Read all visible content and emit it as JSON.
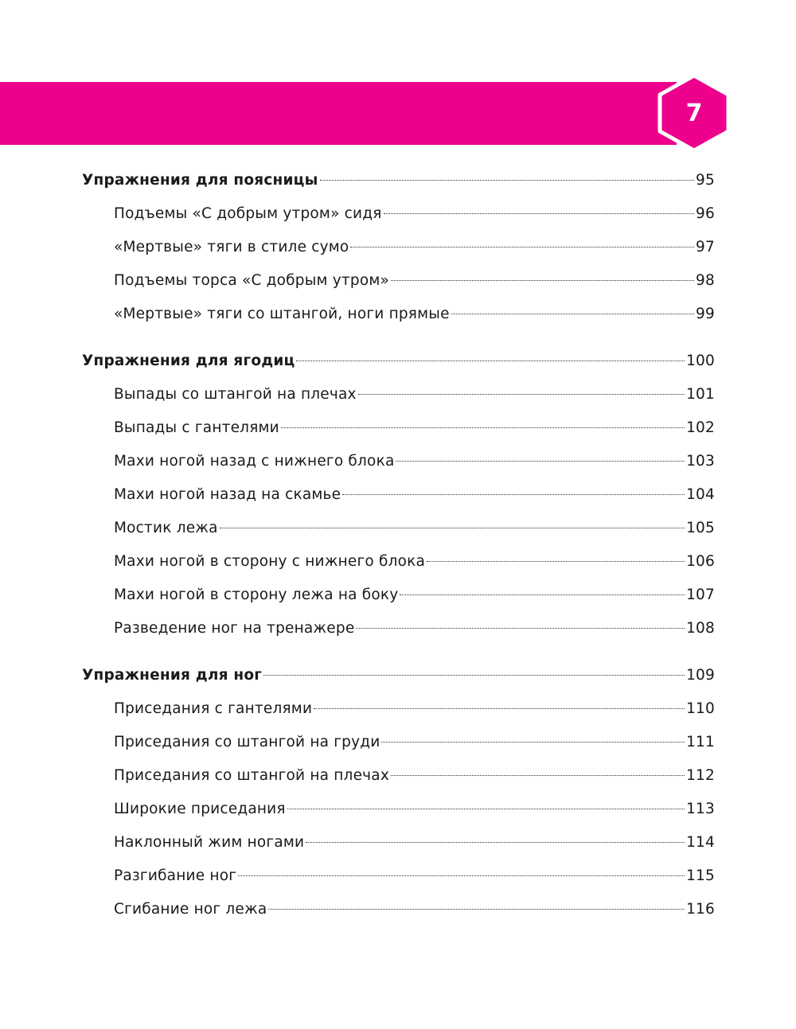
{
  "header": {
    "chapter_number": "7",
    "accent_color": "#ec008c"
  },
  "toc": [
    {
      "type": "section",
      "title": "Упражнения для поясницы",
      "page": "95"
    },
    {
      "type": "item",
      "title": "Подъемы «С добрым утром» сидя",
      "page": "96"
    },
    {
      "type": "item",
      "title": "«Мертвые» тяги в стиле сумо",
      "page": "97"
    },
    {
      "type": "item",
      "title": "Подъемы торса «С добрым утром»",
      "page": "98"
    },
    {
      "type": "item",
      "title": "«Мертвые» тяги со штангой, ноги прямые",
      "page": "99"
    },
    {
      "type": "section",
      "title": "Упражнения для ягодиц",
      "page": "100"
    },
    {
      "type": "item",
      "title": "Выпады со штангой на плечах",
      "page": "101"
    },
    {
      "type": "item",
      "title": "Выпады с гантелями",
      "page": "102"
    },
    {
      "type": "item",
      "title": "Махи ногой назад с нижнего блока",
      "page": "103"
    },
    {
      "type": "item",
      "title": "Махи ногой назад на скамье",
      "page": "104"
    },
    {
      "type": "item",
      "title": "Мостик лежа",
      "page": "105"
    },
    {
      "type": "item",
      "title": "Махи ногой в сторону с нижнего блока",
      "page": "106"
    },
    {
      "type": "item",
      "title": "Махи ногой в сторону лежа на боку",
      "page": "107"
    },
    {
      "type": "item",
      "title": "Разведение ног на тренажере",
      "page": "108"
    },
    {
      "type": "section",
      "title": "Упражнения для ног",
      "page": "109"
    },
    {
      "type": "item",
      "title": "Приседания с гантелями",
      "page": "110"
    },
    {
      "type": "item",
      "title": "Приседания со штангой на груди",
      "page": "111"
    },
    {
      "type": "item",
      "title": "Приседания со штангой на плечах",
      "page": "112"
    },
    {
      "type": "item",
      "title": "Широкие приседания",
      "page": "113"
    },
    {
      "type": "item",
      "title": "Наклонный жим ногами",
      "page": "114"
    },
    {
      "type": "item",
      "title": "Разгибание ног",
      "page": "115"
    },
    {
      "type": "item",
      "title": "Сгибание ног лежа",
      "page": "116"
    }
  ]
}
